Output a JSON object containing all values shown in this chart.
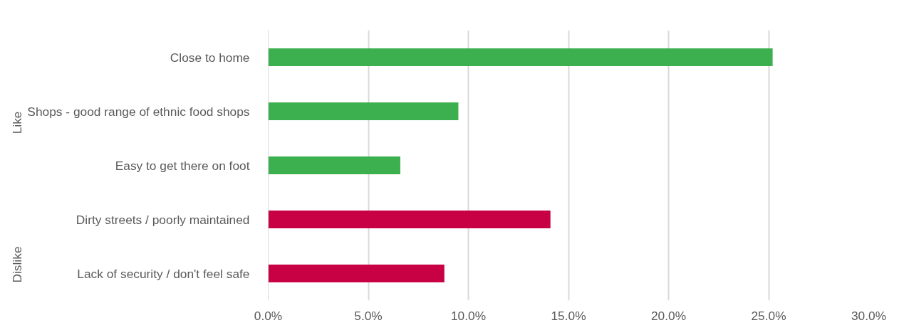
{
  "chart_data": {
    "type": "bar",
    "orientation": "horizontal",
    "categories": [
      "Close to home",
      "Shops - good range of ethnic food shops",
      "Easy to get there on foot",
      "Dirty streets / poorly maintained",
      "Lack of security / don't feel safe"
    ],
    "values": [
      25.2,
      9.5,
      6.6,
      14.1,
      8.8
    ],
    "colors": [
      "#3cb04e",
      "#3cb04e",
      "#3cb04e",
      "#c80044",
      "#c80044"
    ],
    "annotations": [
      "Like",
      "Dislike"
    ],
    "xlim": [
      0,
      30
    ],
    "xticks": [
      {
        "value": 0,
        "label": "0.0%"
      },
      {
        "value": 5,
        "label": "5.0%"
      },
      {
        "value": 10,
        "label": "10.0%"
      },
      {
        "value": 15,
        "label": "15.0%"
      },
      {
        "value": 20,
        "label": "20.0%"
      },
      {
        "value": 25,
        "label": "25.0%"
      },
      {
        "value": 30,
        "label": "30.0%"
      }
    ],
    "grid": "x"
  }
}
